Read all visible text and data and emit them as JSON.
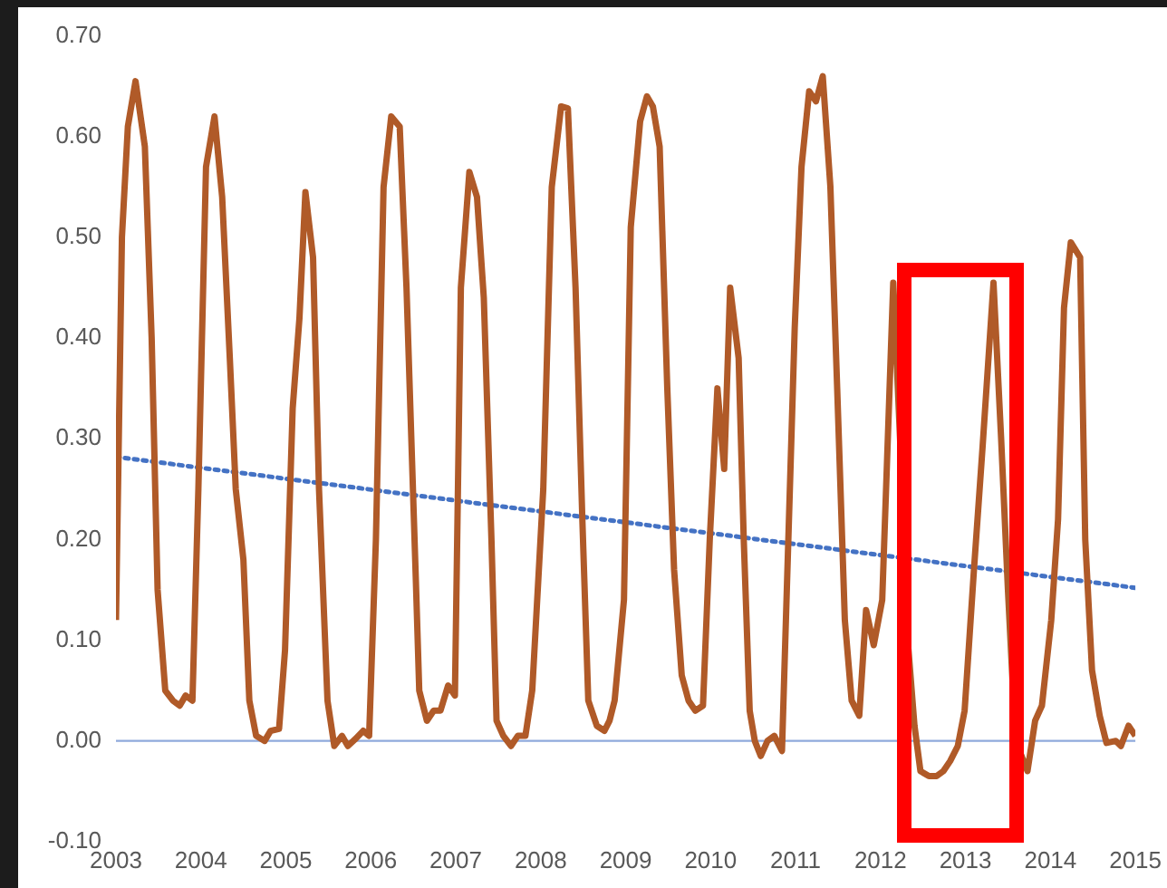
{
  "chart_data": {
    "type": "line",
    "marker": "none",
    "grid": false,
    "legend": false,
    "xlim": [
      2003,
      2015
    ],
    "xticks": [
      2003,
      2004,
      2005,
      2006,
      2007,
      2008,
      2009,
      2010,
      2011,
      2012,
      2013,
      2014,
      2015
    ],
    "ylim": [
      -0.1,
      0.7
    ],
    "yticks": [
      {
        "value": -0.1,
        "label": "-0.10"
      },
      {
        "value": 0,
        "label": "0.00"
      },
      {
        "value": 0.1,
        "label": "0.10"
      },
      {
        "value": 0.2,
        "label": "0.20"
      },
      {
        "value": 0.3,
        "label": "0.30"
      },
      {
        "value": 0.4,
        "label": "0.40"
      },
      {
        "value": 0.5,
        "label": "0.50"
      },
      {
        "value": 0.6,
        "label": "0.60"
      },
      {
        "value": 0.7,
        "label": "0.70"
      }
    ],
    "ref_lines": [
      {
        "axis": "y",
        "value": 0,
        "color": "#8faadc"
      }
    ],
    "series": [
      {
        "color": "#b05a28",
        "line_style": "solid",
        "x": [
          2003.0,
          2003.07,
          2003.14,
          2003.23,
          2003.34,
          2003.42,
          2003.49,
          2003.58,
          2003.67,
          2003.75,
          2003.82,
          2003.9,
          2003.97,
          2004.06,
          2004.16,
          2004.25,
          2004.34,
          2004.41,
          2004.5,
          2004.57,
          2004.65,
          2004.75,
          2004.82,
          2004.92,
          2004.99,
          2005.08,
          2005.16,
          2005.23,
          2005.32,
          2005.39,
          2005.49,
          2005.57,
          2005.66,
          2005.73,
          2005.82,
          2005.91,
          2005.98,
          2006.06,
          2006.15,
          2006.24,
          2006.34,
          2006.42,
          2006.53,
          2006.57,
          2006.66,
          2006.74,
          2006.82,
          2006.91,
          2006.99,
          2007.06,
          2007.16,
          2007.25,
          2007.33,
          2007.42,
          2007.48,
          2007.56,
          2007.65,
          2007.73,
          2007.82,
          2007.9,
          2008.03,
          2008.13,
          2008.24,
          2008.32,
          2008.41,
          2008.49,
          2008.56,
          2008.66,
          2008.75,
          2008.81,
          2008.87,
          2008.98,
          2009.06,
          2009.17,
          2009.25,
          2009.32,
          2009.4,
          2009.49,
          2009.57,
          2009.66,
          2009.74,
          2009.82,
          2009.91,
          2009.99,
          2010.08,
          2010.16,
          2010.23,
          2010.33,
          2010.39,
          2010.46,
          2010.52,
          2010.59,
          2010.67,
          2010.75,
          2010.84,
          2010.99,
          2011.07,
          2011.16,
          2011.24,
          2011.32,
          2011.41,
          2011.49,
          2011.58,
          2011.66,
          2011.75,
          2011.83,
          2011.92,
          2012.02,
          2012.15,
          2012.23,
          2012.32,
          2012.4,
          2012.47,
          2012.57,
          2012.66,
          2012.74,
          2012.82,
          2012.91,
          2012.99,
          2013.1,
          2013.2,
          2013.33,
          2013.42,
          2013.5,
          2013.59,
          2013.73,
          2013.82,
          2013.9,
          2014.01,
          2014.09,
          2014.16,
          2014.24,
          2014.35,
          2014.41,
          2014.49,
          2014.58,
          2014.66,
          2014.77,
          2014.83,
          2014.92,
          2015.0
        ],
        "values": [
          0.12,
          0.5,
          0.61,
          0.655,
          0.59,
          0.4,
          0.15,
          0.05,
          0.04,
          0.035,
          0.045,
          0.04,
          0.25,
          0.57,
          0.62,
          0.54,
          0.38,
          0.25,
          0.18,
          0.04,
          0.005,
          0.0,
          0.01,
          0.012,
          0.09,
          0.33,
          0.42,
          0.545,
          0.48,
          0.25,
          0.04,
          -0.005,
          0.005,
          -0.005,
          0.002,
          0.01,
          0.005,
          0.2,
          0.55,
          0.62,
          0.61,
          0.45,
          0.16,
          0.05,
          0.02,
          0.03,
          0.03,
          0.055,
          0.045,
          0.45,
          0.565,
          0.54,
          0.44,
          0.2,
          0.02,
          0.005,
          -0.005,
          0.005,
          0.005,
          0.05,
          0.25,
          0.55,
          0.63,
          0.628,
          0.45,
          0.22,
          0.04,
          0.015,
          0.01,
          0.02,
          0.04,
          0.14,
          0.51,
          0.615,
          0.64,
          0.63,
          0.59,
          0.35,
          0.17,
          0.065,
          0.04,
          0.03,
          0.035,
          0.2,
          0.35,
          0.27,
          0.45,
          0.38,
          0.2,
          0.03,
          0.0,
          -0.015,
          0.0,
          0.005,
          -0.01,
          0.41,
          0.57,
          0.645,
          0.635,
          0.66,
          0.55,
          0.35,
          0.12,
          0.04,
          0.025,
          0.13,
          0.095,
          0.14,
          0.455,
          0.3,
          0.1,
          0.015,
          -0.03,
          -0.035,
          -0.035,
          -0.03,
          -0.02,
          -0.005,
          0.03,
          0.17,
          0.29,
          0.455,
          0.3,
          0.15,
          0.0,
          -0.03,
          0.02,
          0.035,
          0.12,
          0.22,
          0.43,
          0.495,
          0.48,
          0.2,
          0.07,
          0.025,
          -0.002,
          0.0,
          -0.005,
          0.015,
          0.005
        ]
      },
      {
        "type": "line",
        "color": "#4472c4",
        "line_style": "dotted",
        "x": [
          2003,
          2015
        ],
        "values": [
          0.282,
          0.152
        ]
      }
    ]
  }
}
